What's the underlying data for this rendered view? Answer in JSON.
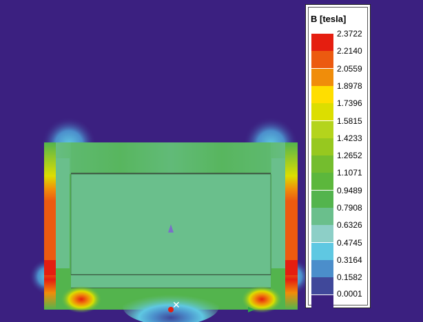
{
  "legend": {
    "title": "B [tesla]",
    "levels": [
      "2.3722",
      "2.2140",
      "2.0559",
      "1.8978",
      "1.7396",
      "1.5815",
      "1.4233",
      "1.2652",
      "1.1071",
      "0.9489",
      "0.7908",
      "0.6326",
      "0.4745",
      "0.3164",
      "0.1582",
      "0.0001"
    ],
    "colors": [
      "#e51e10",
      "#ec5a10",
      "#f08d0a",
      "#ffde00",
      "#dcde00",
      "#b4d41c",
      "#97c81f",
      "#74bd2e",
      "#5cb73c",
      "#53b44d",
      "#6abf8c",
      "#8dcfc7",
      "#5fc8e2",
      "#4b8ecb",
      "#40489a",
      "#3b2080"
    ]
  },
  "colors": {
    "background": "#3b2080"
  }
}
